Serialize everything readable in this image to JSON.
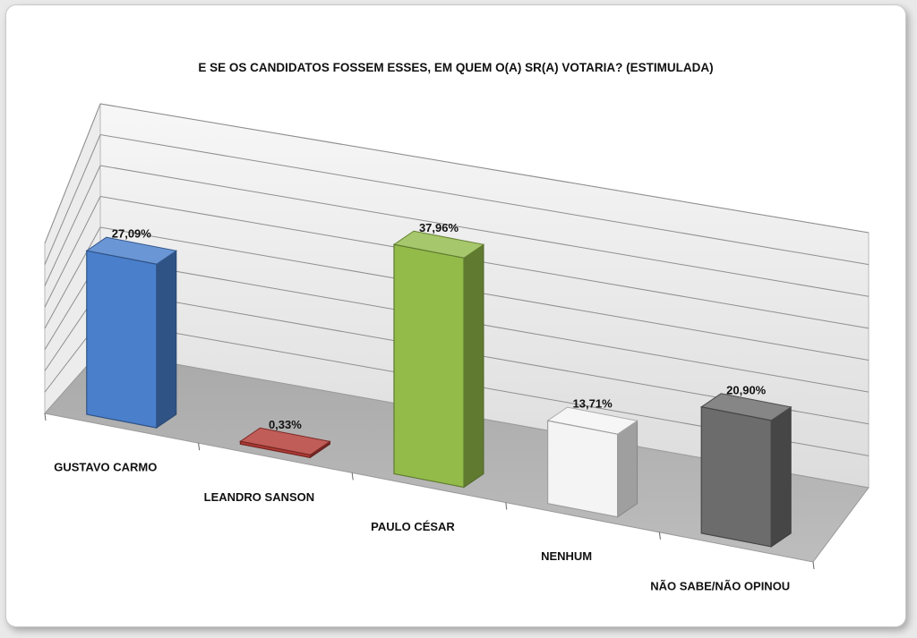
{
  "chart_data": {
    "type": "bar",
    "title": "E SE OS CANDIDATOS FOSSEM ESSES, EM QUEM O(A) SR(A) VOTARIA? (ESTIMULADA)",
    "categories": [
      "GUSTAVO CARMO",
      "LEANDRO SANSON",
      "PAULO CÉSAR",
      "NENHUM",
      "NÃO SABE/NÃO OPINOU"
    ],
    "values": [
      27.09,
      0.33,
      37.96,
      13.71,
      20.9
    ],
    "value_labels": [
      "27,09%",
      "0,33%",
      "37,96%",
      "13,71%",
      "20,90%"
    ],
    "colors": [
      "#4a7fcc",
      "#b23a35",
      "#93bb4a",
      "#f4f4f4",
      "#6c6c6c"
    ],
    "ylim": [
      0,
      40
    ],
    "grid": true,
    "legend": "none",
    "projection": "3d"
  }
}
